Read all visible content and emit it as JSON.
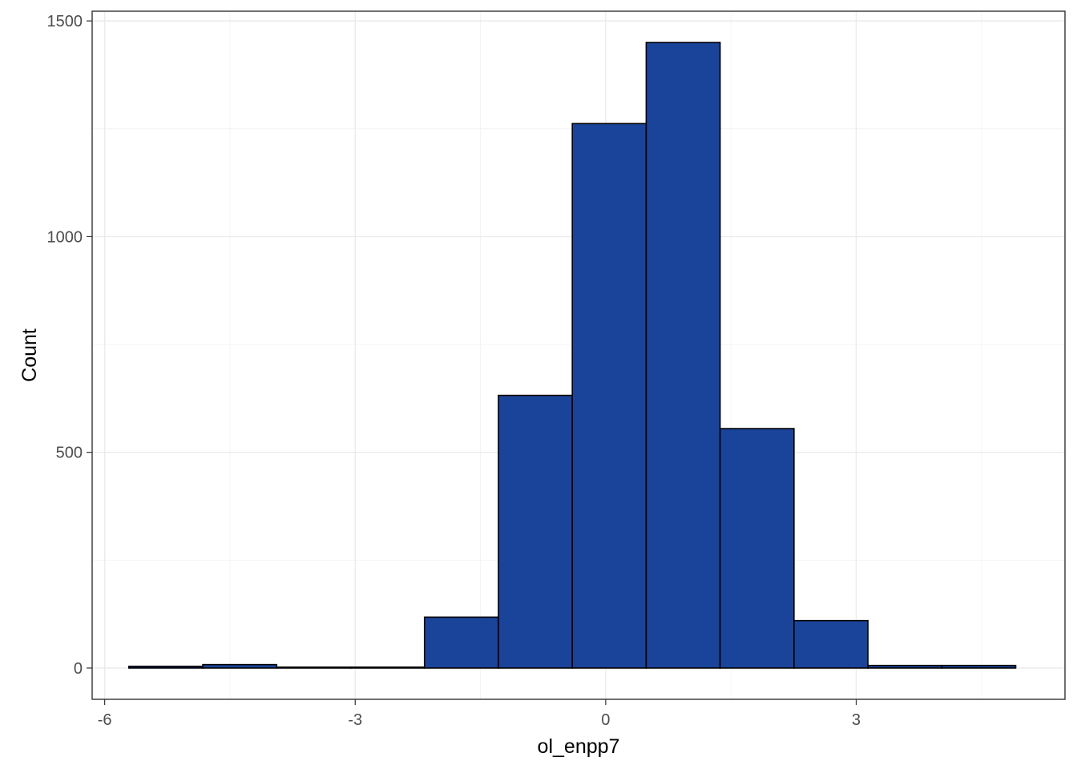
{
  "chart_data": {
    "type": "histogram",
    "xlabel": "ol_enpp7",
    "ylabel": "Count",
    "xlim": [
      -6.15,
      5.5
    ],
    "ylim": [
      -72.5,
      1522.5
    ],
    "x_ticks": [
      -6,
      -3,
      0,
      3
    ],
    "x_tick_labels": [
      "-6",
      "-3",
      "0",
      "3"
    ],
    "y_ticks": [
      0,
      500,
      1000,
      1500
    ],
    "y_tick_labels": [
      "0",
      "500",
      "1000",
      "1500"
    ],
    "x_minor": [
      -4.5,
      -1.5,
      1.5,
      4.5
    ],
    "y_minor": [
      250,
      750,
      1250
    ],
    "grid": true,
    "bar_fill": "#1a4499",
    "bar_outline": "#000000",
    "bins": [
      {
        "x0": -5.71,
        "x1": -4.825,
        "count": 4
      },
      {
        "x0": -4.825,
        "x1": -3.94,
        "count": 8
      },
      {
        "x0": -3.94,
        "x1": -3.055,
        "count": 2
      },
      {
        "x0": -3.055,
        "x1": -2.17,
        "count": 2
      },
      {
        "x0": -2.17,
        "x1": -1.285,
        "count": 118
      },
      {
        "x0": -1.285,
        "x1": -0.4,
        "count": 632
      },
      {
        "x0": -0.4,
        "x1": 0.485,
        "count": 1262
      },
      {
        "x0": 0.485,
        "x1": 1.37,
        "count": 1450
      },
      {
        "x0": 1.37,
        "x1": 2.255,
        "count": 555
      },
      {
        "x0": 2.255,
        "x1": 3.14,
        "count": 110
      },
      {
        "x0": 3.14,
        "x1": 4.025,
        "count": 6
      },
      {
        "x0": 4.025,
        "x1": 4.91,
        "count": 6
      }
    ]
  }
}
